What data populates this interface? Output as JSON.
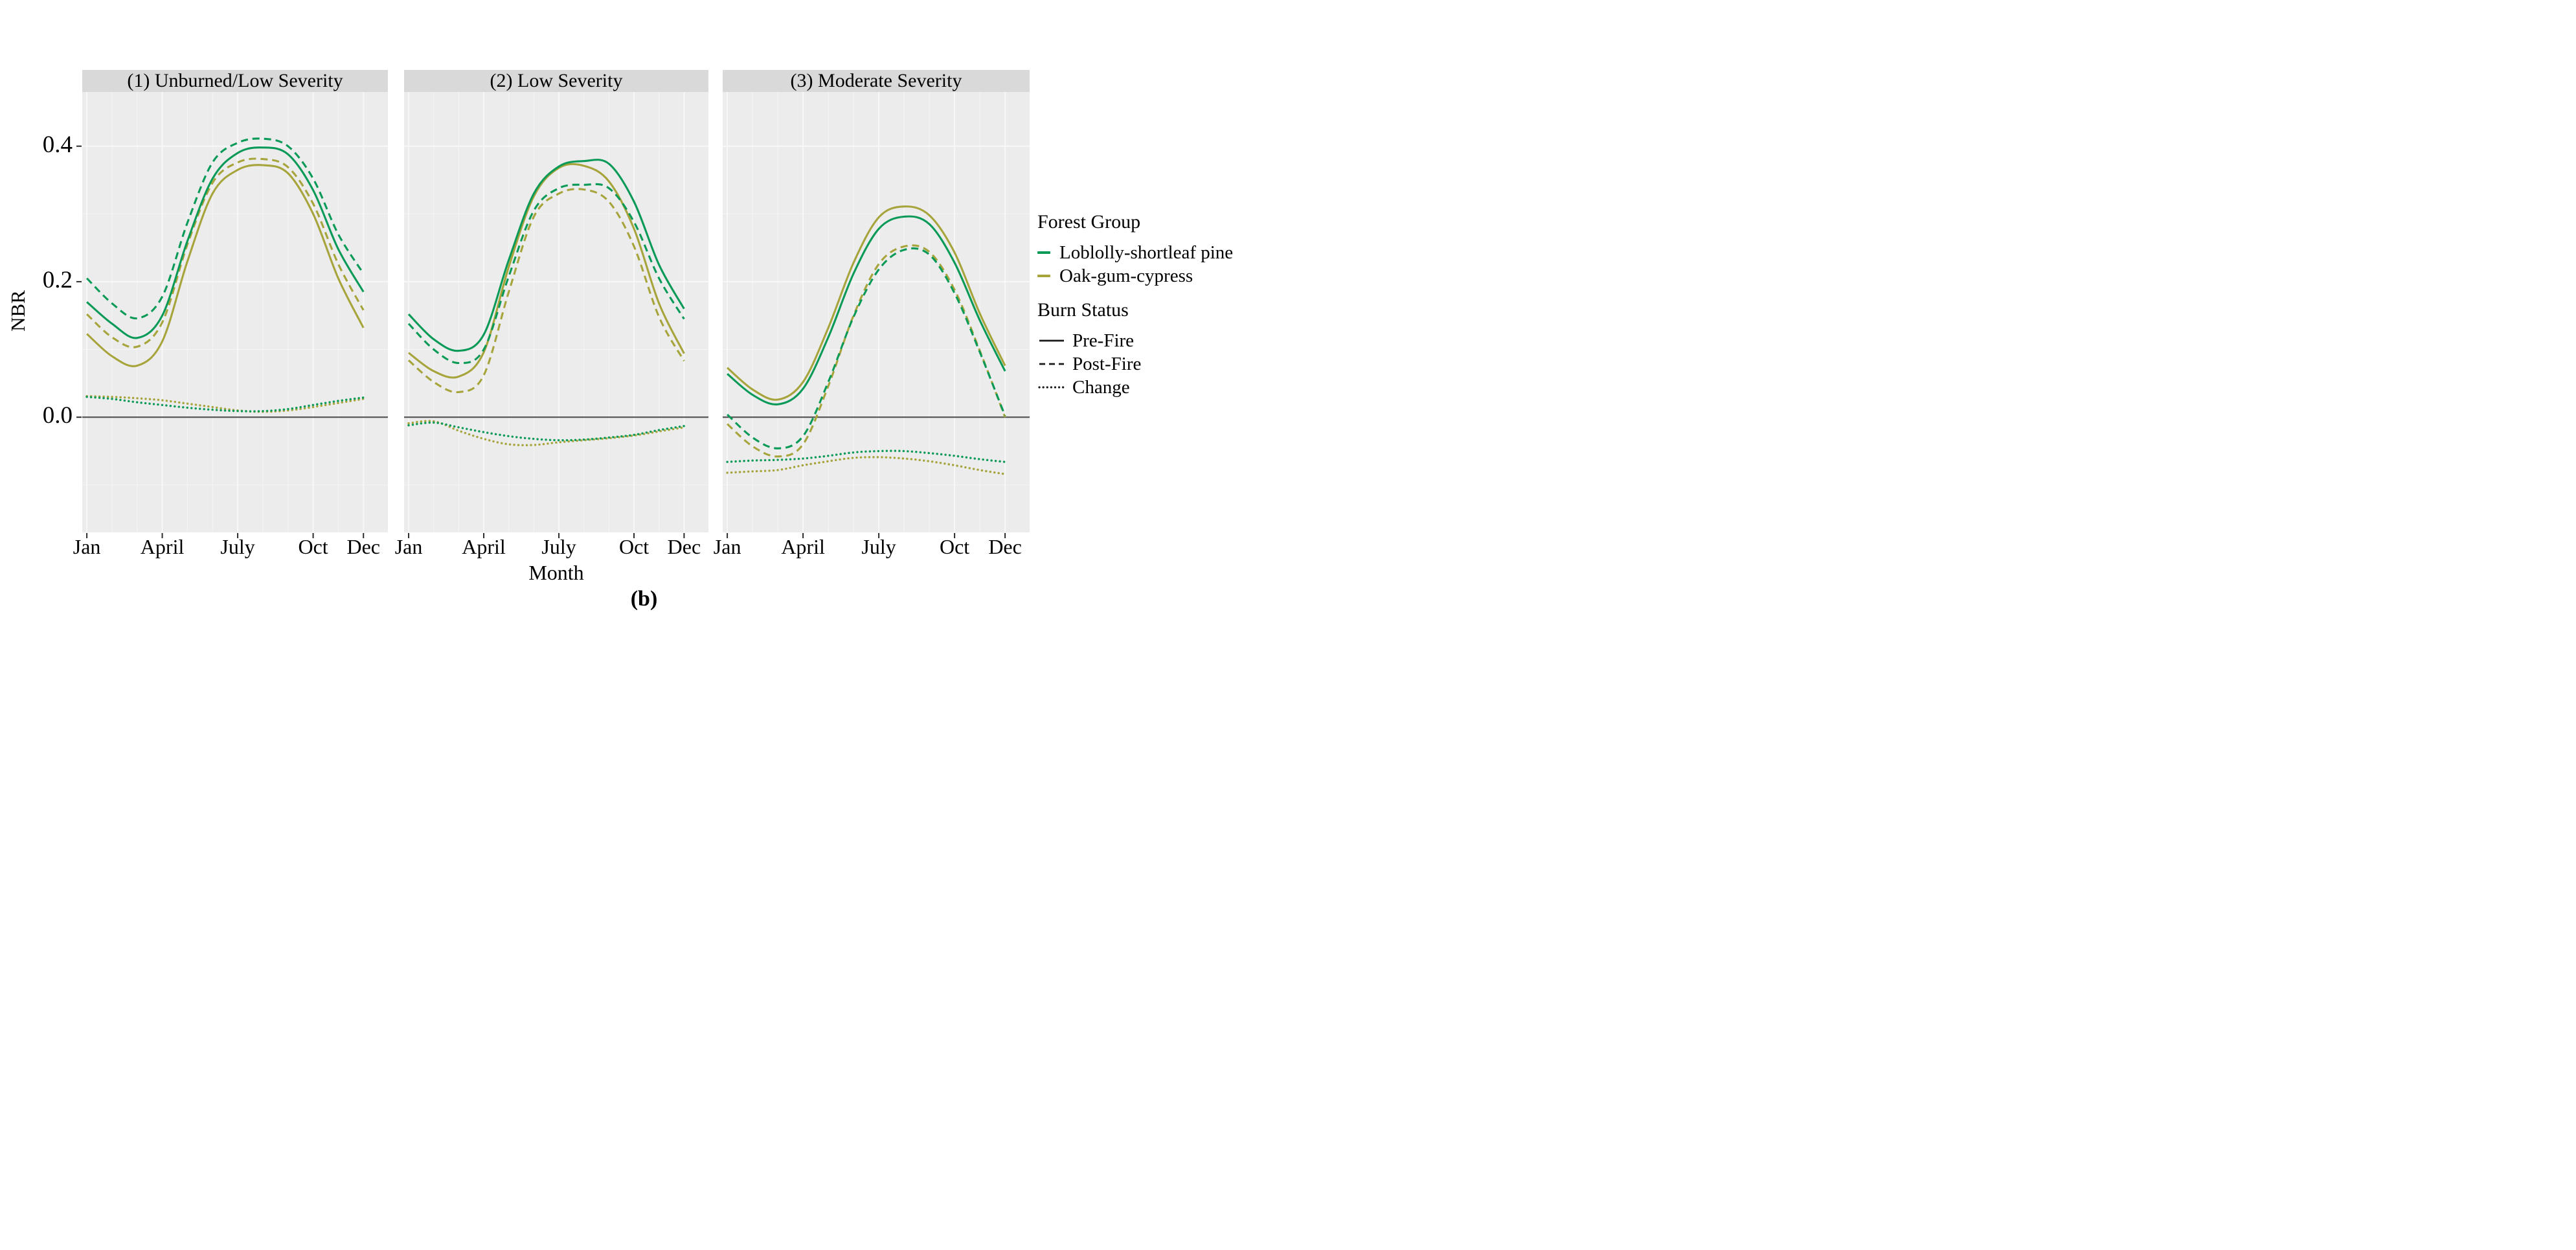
{
  "figure": {
    "caption": "(b)"
  },
  "legend": {
    "forest_group": {
      "title": "Forest Group",
      "items": [
        {
          "label": "Loblolly-shortleaf pine",
          "color": "#0a9a58"
        },
        {
          "label": "Oak-gum-cypress",
          "color": "#a6a43b"
        }
      ]
    },
    "burn_status": {
      "title": "Burn Status",
      "items": [
        {
          "label": "Pre-Fire",
          "style": "solid"
        },
        {
          "label": "Post-Fire",
          "style": "dashed"
        },
        {
          "label": "Change",
          "style": "dotted"
        }
      ]
    }
  },
  "chart_data": {
    "type": "line",
    "xlabel": "Month",
    "ylabel": "NBR",
    "ylim": [
      -0.17,
      0.48
    ],
    "grid": "on",
    "legend_position": "right",
    "months": [
      1,
      2,
      3,
      4,
      5,
      6,
      7,
      8,
      9,
      10,
      11,
      12
    ],
    "x_ticks": [
      {
        "month": 1,
        "label": "Jan"
      },
      {
        "month": 4,
        "label": "April"
      },
      {
        "month": 7,
        "label": "July"
      },
      {
        "month": 10,
        "label": "Oct"
      },
      {
        "month": 12,
        "label": "Dec"
      }
    ],
    "y_ticks": [
      {
        "value": 0.0,
        "label": "0.0"
      },
      {
        "value": 0.2,
        "label": "0.2"
      },
      {
        "value": 0.4,
        "label": "0.4"
      }
    ],
    "colors": {
      "Loblolly-shortleaf pine": "#0a9a58",
      "Oak-gum-cypress": "#a6a43b"
    },
    "line_styles": {
      "Pre-Fire": "solid",
      "Post-Fire": "dashed",
      "Change": "dotted"
    },
    "panel_background": "#ececec",
    "gridline_color": "#f8f8f8",
    "zero_line_color": "#5a5a5a",
    "facets": [
      {
        "title": "(1) Unburned/Low Severity",
        "series": [
          {
            "forest_group": "Oak-gum-cypress",
            "burn_status": "Pre-Fire",
            "values": [
              0.123,
              0.09,
              0.076,
              0.112,
              0.23,
              0.33,
              0.365,
              0.372,
              0.36,
              0.3,
              0.205,
              0.132
            ]
          },
          {
            "forest_group": "Oak-gum-cypress",
            "burn_status": "Post-Fire",
            "values": [
              0.152,
              0.118,
              0.104,
              0.14,
              0.255,
              0.346,
              0.376,
              0.381,
              0.369,
              0.315,
              0.226,
              0.158
            ]
          },
          {
            "forest_group": "Loblolly-shortleaf pine",
            "burn_status": "Pre-Fire",
            "values": [
              0.17,
              0.138,
              0.117,
              0.15,
              0.26,
              0.352,
              0.39,
              0.398,
              0.388,
              0.335,
              0.248,
              0.185
            ]
          },
          {
            "forest_group": "Loblolly-shortleaf pine",
            "burn_status": "Post-Fire",
            "values": [
              0.205,
              0.168,
              0.146,
              0.178,
              0.287,
              0.376,
              0.405,
              0.411,
              0.4,
              0.352,
              0.27,
              0.212
            ]
          },
          {
            "forest_group": "Oak-gum-cypress",
            "burn_status": "Change",
            "values": [
              0.031,
              0.03,
              0.028,
              0.025,
              0.02,
              0.015,
              0.01,
              0.008,
              0.01,
              0.015,
              0.021,
              0.027
            ]
          },
          {
            "forest_group": "Loblolly-shortleaf pine",
            "burn_status": "Change",
            "values": [
              0.03,
              0.027,
              0.022,
              0.018,
              0.014,
              0.011,
              0.009,
              0.009,
              0.012,
              0.018,
              0.024,
              0.029
            ]
          }
        ]
      },
      {
        "title": "(2) Low Severity",
        "series": [
          {
            "forest_group": "Oak-gum-cypress",
            "burn_status": "Pre-Fire",
            "values": [
              0.095,
              0.068,
              0.06,
              0.096,
              0.222,
              0.326,
              0.368,
              0.371,
              0.348,
              0.278,
              0.168,
              0.094
            ]
          },
          {
            "forest_group": "Oak-gum-cypress",
            "burn_status": "Post-Fire",
            "values": [
              0.084,
              0.052,
              0.037,
              0.062,
              0.185,
              0.296,
              0.33,
              0.336,
              0.318,
              0.252,
              0.148,
              0.083
            ]
          },
          {
            "forest_group": "Loblolly-shortleaf pine",
            "burn_status": "Pre-Fire",
            "values": [
              0.152,
              0.115,
              0.098,
              0.122,
              0.232,
              0.33,
              0.37,
              0.378,
              0.374,
              0.318,
              0.225,
              0.16
            ]
          },
          {
            "forest_group": "Loblolly-shortleaf pine",
            "burn_status": "Post-Fire",
            "values": [
              0.138,
              0.1,
              0.08,
              0.1,
              0.208,
              0.305,
              0.338,
              0.343,
              0.338,
              0.288,
              0.205,
              0.145
            ]
          },
          {
            "forest_group": "Oak-gum-cypress",
            "burn_status": "Change",
            "values": [
              -0.009,
              -0.006,
              -0.02,
              -0.032,
              -0.04,
              -0.041,
              -0.037,
              -0.034,
              -0.031,
              -0.027,
              -0.021,
              -0.015
            ]
          },
          {
            "forest_group": "Loblolly-shortleaf pine",
            "burn_status": "Change",
            "values": [
              -0.012,
              -0.008,
              -0.015,
              -0.022,
              -0.028,
              -0.032,
              -0.034,
              -0.033,
              -0.03,
              -0.026,
              -0.019,
              -0.013
            ]
          }
        ]
      },
      {
        "title": "(3) Moderate Severity",
        "series": [
          {
            "forest_group": "Oak-gum-cypress",
            "burn_status": "Pre-Fire",
            "values": [
              0.073,
              0.041,
              0.026,
              0.052,
              0.132,
              0.228,
              0.295,
              0.311,
              0.298,
              0.243,
              0.153,
              0.076
            ]
          },
          {
            "forest_group": "Oak-gum-cypress",
            "burn_status": "Post-Fire",
            "values": [
              -0.01,
              -0.043,
              -0.058,
              -0.04,
              0.046,
              0.15,
              0.226,
              0.252,
              0.244,
              0.188,
              0.098,
              0.0
            ]
          },
          {
            "forest_group": "Loblolly-shortleaf pine",
            "burn_status": "Pre-Fire",
            "values": [
              0.064,
              0.033,
              0.019,
              0.042,
              0.118,
              0.212,
              0.278,
              0.296,
              0.285,
              0.228,
              0.143,
              0.068
            ]
          },
          {
            "forest_group": "Loblolly-shortleaf pine",
            "burn_status": "Post-Fire",
            "values": [
              0.004,
              -0.03,
              -0.046,
              -0.028,
              0.052,
              0.148,
              0.218,
              0.247,
              0.24,
              0.183,
              0.096,
              0.002
            ]
          },
          {
            "forest_group": "Oak-gum-cypress",
            "burn_status": "Change",
            "values": [
              -0.082,
              -0.08,
              -0.078,
              -0.071,
              -0.065,
              -0.06,
              -0.059,
              -0.061,
              -0.065,
              -0.071,
              -0.078,
              -0.084
            ]
          },
          {
            "forest_group": "Loblolly-shortleaf pine",
            "burn_status": "Change",
            "values": [
              -0.066,
              -0.064,
              -0.063,
              -0.061,
              -0.057,
              -0.052,
              -0.05,
              -0.05,
              -0.053,
              -0.057,
              -0.062,
              -0.066
            ]
          }
        ]
      }
    ]
  }
}
